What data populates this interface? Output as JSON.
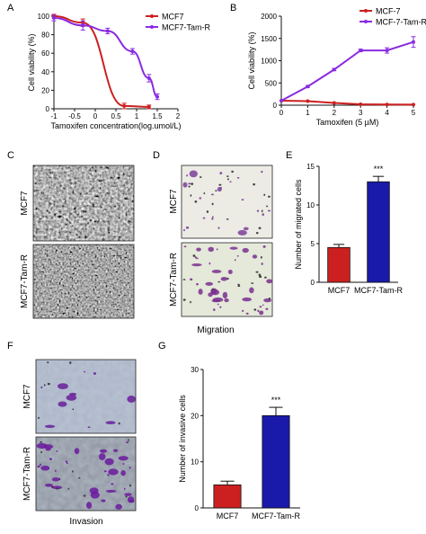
{
  "panels": {
    "A": "A",
    "B": "B",
    "C": "C",
    "D": "D",
    "E": "E",
    "F": "F",
    "G": "G"
  },
  "captions": {
    "migration": "Migration",
    "invasion": "Invasion"
  },
  "image_labels": {
    "c_top": "MCF7",
    "c_bottom": "MCF7-Tam-R",
    "d_top": "MCF7",
    "d_bottom": "MCF7-Tam-R",
    "f_top": "MCF7",
    "f_bottom": "MCF7-Tam-R"
  },
  "colors": {
    "red": "#cc2020",
    "purple": "#8a2be2",
    "blue": "#1a1aaa"
  },
  "chart_data": [
    {
      "id": "A",
      "type": "line",
      "xlabel": "Tamoxifen concentration(log.umol/L)",
      "ylabel": "Cell viability (%)",
      "xlim": [
        -1,
        2
      ],
      "ylim": [
        0,
        100
      ],
      "xticks": [
        "-1",
        "-0.5",
        "0",
        "0.5",
        "1",
        "1.5",
        "2"
      ],
      "yticks": [
        "0",
        "20",
        "40",
        "60",
        "80",
        "100"
      ],
      "legend": "top-right",
      "series": [
        {
          "name": "MCF7",
          "color": "#cc2020",
          "points": [
            [
              -1,
              100
            ],
            [
              -0.3,
              93
            ],
            [
              0.7,
              3
            ],
            [
              1.3,
              2
            ]
          ],
          "err": [
            2,
            4,
            3,
            2
          ]
        },
        {
          "name": "MCF7-Tam-R",
          "color": "#8a2be2",
          "points": [
            [
              -1,
              98
            ],
            [
              -0.3,
              90
            ],
            [
              0.3,
              84
            ],
            [
              0.9,
              62
            ],
            [
              1.3,
              33
            ],
            [
              1.5,
              13
            ]
          ],
          "err": [
            3,
            5,
            3,
            3,
            4,
            3
          ]
        }
      ]
    },
    {
      "id": "B",
      "type": "line",
      "xlabel": "Tamoxifen (5 µM)",
      "ylabel": "Cell viability (%)",
      "xlim": [
        0,
        5
      ],
      "ylim": [
        0,
        2000
      ],
      "xticks": [
        "0",
        "1",
        "2",
        "3",
        "4",
        "5"
      ],
      "yticks": [
        "0",
        "500",
        "1000",
        "1500",
        "2000"
      ],
      "legend": "top-right",
      "series": [
        {
          "name": "MCF-7",
          "color": "#cc2020",
          "points": [
            [
              0,
              100
            ],
            [
              1,
              90
            ],
            [
              2,
              50
            ],
            [
              3,
              20
            ],
            [
              4,
              15
            ],
            [
              5,
              12
            ]
          ],
          "err": [
            0,
            0,
            0,
            0,
            0,
            0
          ]
        },
        {
          "name": "MCF-7-Tam-R",
          "color": "#8a2be2",
          "points": [
            [
              0,
              100
            ],
            [
              1,
              420
            ],
            [
              2,
              800
            ],
            [
              3,
              1230
            ],
            [
              4,
              1230
            ],
            [
              5,
              1420
            ]
          ],
          "err": [
            0,
            20,
            25,
            30,
            60,
            120
          ]
        }
      ]
    },
    {
      "id": "E",
      "type": "bar",
      "ylabel": "Number of migrated cells",
      "ylim": [
        0,
        15
      ],
      "yticks": [
        "0",
        "5",
        "10",
        "15"
      ],
      "categories": [
        "MCF7",
        "MCF7-Tam-R"
      ],
      "values": [
        4.5,
        13
      ],
      "err": [
        0.4,
        0.7
      ],
      "colors": [
        "#cc2020",
        "#1a1aaa"
      ],
      "annotation": "***"
    },
    {
      "id": "G",
      "type": "bar",
      "ylabel": "Number of invasive cells",
      "ylim": [
        0,
        30
      ],
      "yticks": [
        "0",
        "10",
        "20",
        "30"
      ],
      "categories": [
        "MCF7",
        "MCF7-Tam-R"
      ],
      "values": [
        5,
        20
      ],
      "err": [
        0.8,
        1.8
      ],
      "colors": [
        "#cc2020",
        "#1a1aaa"
      ],
      "annotation": "***"
    }
  ]
}
